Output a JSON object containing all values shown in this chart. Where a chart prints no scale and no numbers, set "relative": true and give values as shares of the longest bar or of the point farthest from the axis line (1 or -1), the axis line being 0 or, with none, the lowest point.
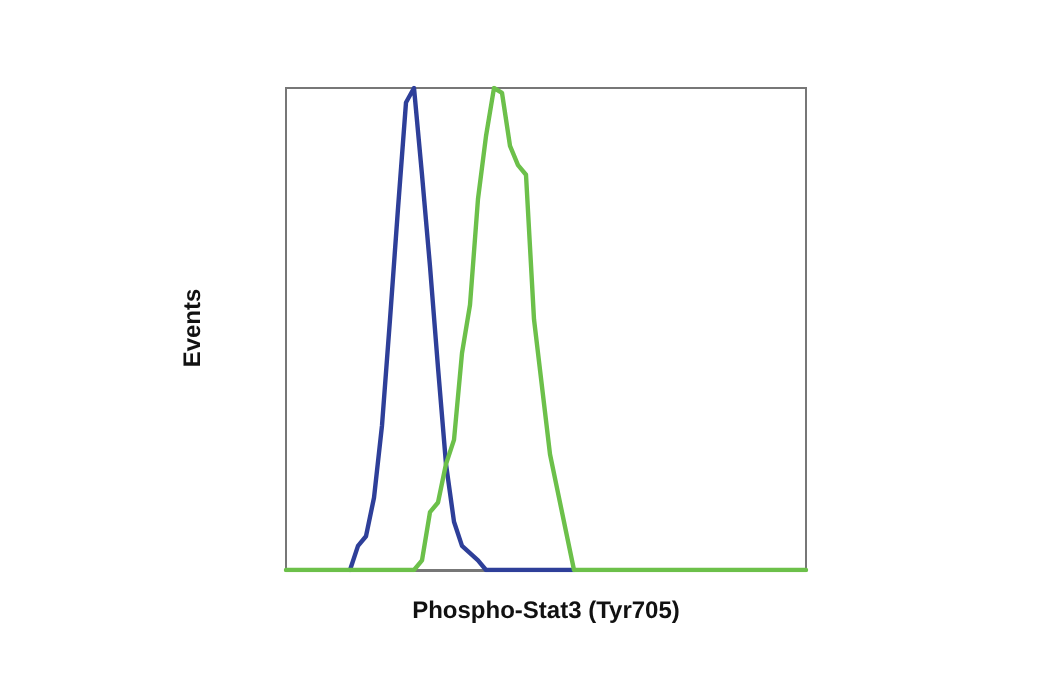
{
  "chart_data": {
    "type": "line",
    "xlabel": "Phospho-Stat3 (Tyr705)",
    "ylabel": "Events",
    "relative": true,
    "grid": false,
    "marker": "none",
    "categories": [
      null,
      null,
      null,
      null,
      null,
      null,
      null,
      null,
      null,
      null,
      null,
      null,
      null,
      null,
      null,
      null,
      null,
      null,
      null,
      null,
      null,
      null,
      null,
      null,
      null,
      null,
      null,
      null,
      null,
      null,
      null,
      null,
      null,
      null,
      null,
      null,
      null,
      null,
      null,
      null,
      null,
      null,
      null,
      null,
      null,
      null,
      null,
      null,
      null,
      null,
      null,
      null,
      null,
      null,
      null,
      null,
      null,
      null,
      null,
      null,
      null,
      null,
      null,
      null,
      null,
      null
    ],
    "series": [
      {
        "color": "#2e3f99",
        "values": [
          null,
          null,
          null,
          null,
          null,
          null,
          null,
          null,
          0,
          0.05,
          0.07,
          0.15,
          0.3,
          0.52,
          0.75,
          0.97,
          1,
          0.82,
          0.63,
          0.42,
          0.22,
          0.1,
          0.05,
          0.035,
          0.02,
          0,
          0,
          0,
          0,
          0,
          0,
          0,
          0,
          0,
          0,
          0,
          0,
          null,
          null,
          null,
          null,
          null,
          null,
          null,
          null,
          null,
          null,
          null,
          null,
          null,
          null,
          null,
          null,
          null,
          null,
          null,
          null,
          null,
          null,
          null,
          null,
          null,
          null,
          null,
          null,
          null
        ]
      },
      {
        "color": "#6cc04a",
        "values": [
          0,
          0,
          0,
          0,
          0,
          0,
          0,
          0,
          0,
          0,
          0,
          0,
          0,
          0,
          0,
          0,
          0,
          0.02,
          0.12,
          0.14,
          0.22,
          0.27,
          0.45,
          0.55,
          0.77,
          0.9,
          1,
          0.99,
          0.88,
          0.84,
          0.82,
          0.52,
          0.38,
          0.24,
          0.16,
          0.08,
          0,
          0,
          0,
          0,
          0,
          0,
          0,
          0,
          0,
          0,
          0,
          0,
          0,
          0,
          0,
          0,
          0,
          0,
          0,
          0,
          0,
          0,
          0,
          0,
          0,
          0,
          0,
          0,
          0,
          0
        ]
      }
    ]
  }
}
